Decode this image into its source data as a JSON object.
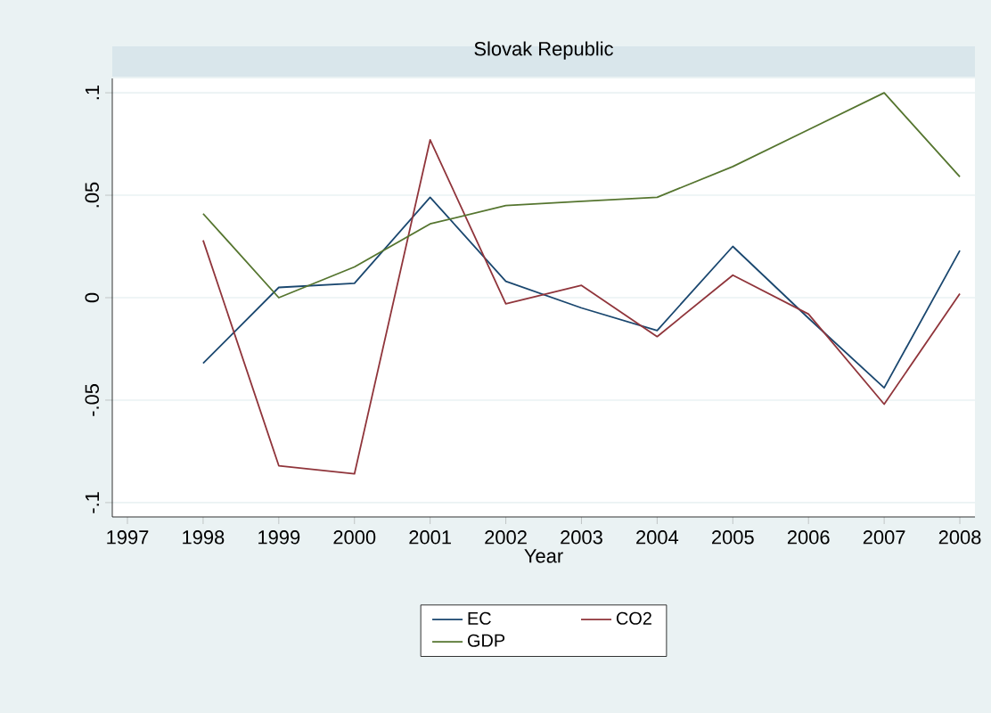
{
  "chart_data": {
    "type": "line",
    "title": "Slovak Republic",
    "xlabel": "Year",
    "x": [
      1998,
      1999,
      2000,
      2001,
      2002,
      2003,
      2004,
      2005,
      2006,
      2007,
      2008
    ],
    "series": [
      {
        "name": "EC",
        "color": "#1a476f",
        "values": [
          -0.032,
          0.005,
          0.007,
          0.049,
          0.008,
          -0.005,
          -0.016,
          0.025,
          -0.01,
          -0.044,
          0.023
        ]
      },
      {
        "name": "CO2",
        "color": "#90353b",
        "values": [
          0.028,
          -0.082,
          -0.086,
          0.077,
          -0.003,
          0.006,
          -0.019,
          0.011,
          -0.008,
          -0.052,
          0.002
        ]
      },
      {
        "name": "GDP",
        "color": "#55752f",
        "values": [
          0.041,
          0.0,
          0.015,
          0.036,
          0.045,
          0.047,
          0.049,
          0.064,
          0.082,
          0.1,
          0.059
        ]
      }
    ],
    "xlim": [
      1996.8,
      2008.2
    ],
    "ylim": [
      -0.107,
      0.107
    ],
    "xticks": [
      1997,
      1998,
      1999,
      2000,
      2001,
      2002,
      2003,
      2004,
      2005,
      2006,
      2007,
      2008
    ],
    "yticks": [
      {
        "value": -0.1,
        "label": "-.1"
      },
      {
        "value": -0.05,
        "label": "-.05"
      },
      {
        "value": 0,
        "label": "0"
      },
      {
        "value": 0.05,
        "label": ".05"
      },
      {
        "value": 0.1,
        "label": ".1"
      }
    ],
    "grid": "y",
    "legend": "bottom",
    "marker": "none",
    "line_style": "solid"
  }
}
